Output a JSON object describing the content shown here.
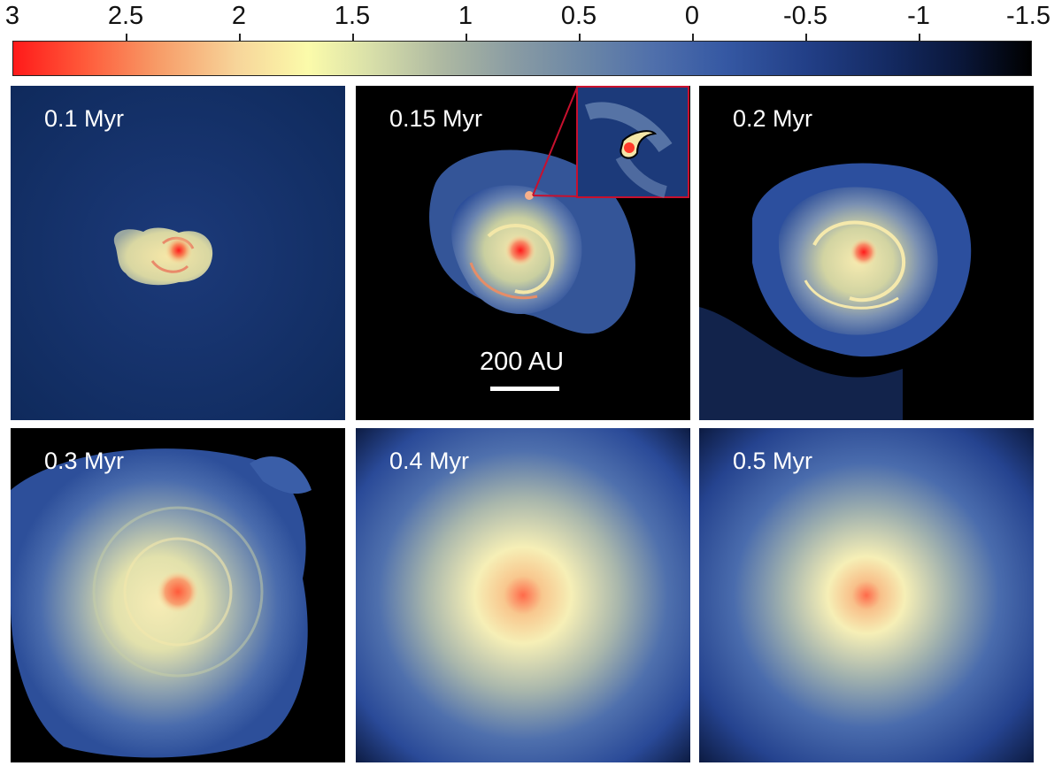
{
  "colorbar": {
    "ticks": [
      "3",
      "2.5",
      "2",
      "1.5",
      "1",
      "0.5",
      "0",
      "-0.5",
      "-1",
      "-1.5"
    ],
    "colors": [
      "#ff1a1a",
      "#fbfbaa",
      "#4f6fab",
      "#000000"
    ]
  },
  "panels": [
    {
      "label": "0.1 Myr"
    },
    {
      "label": "0.15 Myr"
    },
    {
      "label": "0.2 Myr"
    },
    {
      "label": "0.3 Myr"
    },
    {
      "label": "0.4 Myr"
    },
    {
      "label": "0.5 Myr"
    }
  ],
  "scalebar": {
    "label": "200 AU"
  },
  "inset": {
    "border_color": "#c8102e"
  }
}
